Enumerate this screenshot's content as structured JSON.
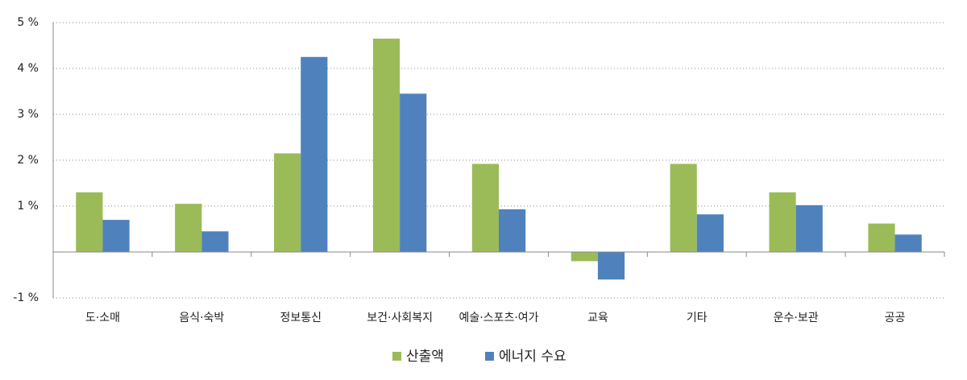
{
  "chart_data": {
    "type": "bar",
    "categories": [
      "도·소매",
      "음식·숙박",
      "정보통신",
      "보건·사회복지",
      "예술·스포츠·여가",
      "교육",
      "기타",
      "운수·보관",
      "공공"
    ],
    "series": [
      {
        "name": "산출액",
        "color": "#9bbb59",
        "values": [
          1.3,
          1.05,
          2.15,
          4.65,
          1.92,
          -0.2,
          1.92,
          1.3,
          0.62
        ]
      },
      {
        "name": "에너지 수요",
        "color": "#4f81bd",
        "values": [
          0.7,
          0.45,
          4.25,
          3.45,
          0.93,
          -0.6,
          0.82,
          1.02,
          0.38
        ]
      }
    ],
    "ylim": [
      -1,
      5
    ],
    "yticks": [
      {
        "value": -1,
        "label": "-1 %"
      },
      {
        "value": 1,
        "label": "1 %"
      },
      {
        "value": 2,
        "label": "2 %"
      },
      {
        "value": 3,
        "label": "3 %"
      },
      {
        "value": 4,
        "label": "4 %"
      },
      {
        "value": 5,
        "label": "5 %"
      }
    ],
    "grid": true,
    "legend": "bottom"
  }
}
